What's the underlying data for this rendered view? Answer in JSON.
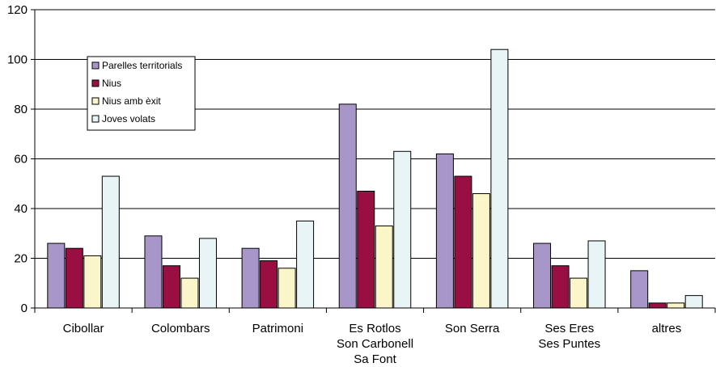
{
  "chart_data": {
    "type": "bar",
    "categories": [
      [
        "Cibollar"
      ],
      [
        "Colombars"
      ],
      [
        "Patrimoni"
      ],
      [
        "Es Rotlos",
        "Son Carbonell",
        "Sa Font"
      ],
      [
        "Son Serra"
      ],
      [
        "Ses Eres",
        "Ses Puntes"
      ],
      [
        "altres"
      ]
    ],
    "series": [
      {
        "name": "Parelles territorials",
        "color": "#a996c8",
        "values": [
          26,
          29,
          24,
          82,
          62,
          26,
          15
        ]
      },
      {
        "name": "Nius",
        "color": "#990f44",
        "values": [
          24,
          17,
          19,
          47,
          53,
          17,
          2
        ]
      },
      {
        "name": "Nius amb èxit",
        "color": "#fbf6c9",
        "values": [
          21,
          12,
          16,
          33,
          46,
          12,
          2
        ]
      },
      {
        "name": "Joves volats",
        "color": "#e8f4f5",
        "values": [
          53,
          28,
          35,
          63,
          104,
          27,
          5
        ]
      }
    ],
    "yticks": [
      "0",
      "20",
      "40",
      "60",
      "80",
      "100",
      "120"
    ],
    "ylim": [
      0,
      120
    ],
    "grid": true,
    "legend_position": "top-left"
  }
}
